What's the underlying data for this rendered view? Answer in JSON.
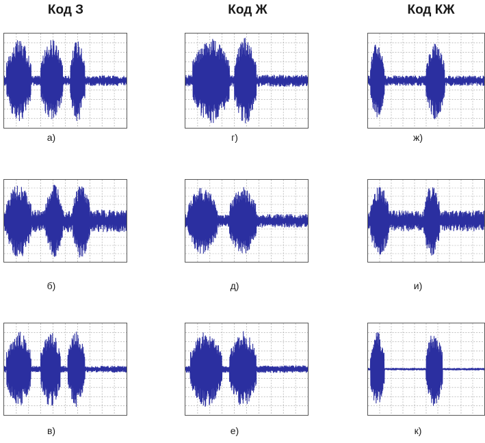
{
  "columns": [
    {
      "title": "Код З"
    },
    {
      "title": "Код Ж"
    },
    {
      "title": "Код КЖ"
    }
  ],
  "colors": {
    "signal": "#2b2fa0",
    "grid": "#9a9a9a",
    "border": "#555555"
  },
  "panels": [
    {
      "caption": "а)",
      "bursts": [
        [
          0.02,
          0.22
        ],
        [
          0.3,
          0.48
        ],
        [
          0.54,
          0.66
        ]
      ],
      "noise": 0.12,
      "amp": 0.95
    },
    {
      "caption": "б)",
      "bursts": [
        [
          0.02,
          0.22
        ],
        [
          0.34,
          0.48
        ],
        [
          0.56,
          0.7
        ]
      ],
      "noise": 0.3,
      "amp": 1.0
    },
    {
      "caption": "в)",
      "bursts": [
        [
          0.02,
          0.22
        ],
        [
          0.3,
          0.46
        ],
        [
          0.52,
          0.66
        ]
      ],
      "noise": 0.08,
      "amp": 0.9
    },
    {
      "caption": "г)",
      "bursts": [
        [
          0.06,
          0.36
        ],
        [
          0.4,
          0.58
        ]
      ],
      "noise": 0.14,
      "amp": 1.0
    },
    {
      "caption": "д)",
      "bursts": [
        [
          0.02,
          0.26
        ],
        [
          0.36,
          0.58
        ]
      ],
      "noise": 0.18,
      "amp": 0.9
    },
    {
      "caption": "е)",
      "bursts": [
        [
          0.04,
          0.3
        ],
        [
          0.36,
          0.58
        ]
      ],
      "noise": 0.09,
      "amp": 0.9
    },
    {
      "caption": "ж)",
      "bursts": [
        [
          0.02,
          0.14
        ],
        [
          0.5,
          0.66
        ]
      ],
      "noise": 0.12,
      "amp": 0.9
    },
    {
      "caption": "и)",
      "bursts": [
        [
          0.02,
          0.18
        ],
        [
          0.48,
          0.62
        ]
      ],
      "noise": 0.28,
      "amp": 0.95
    },
    {
      "caption": "к)",
      "bursts": [
        [
          0.02,
          0.14
        ],
        [
          0.5,
          0.64
        ]
      ],
      "noise": 0.03,
      "amp": 0.9
    }
  ]
}
